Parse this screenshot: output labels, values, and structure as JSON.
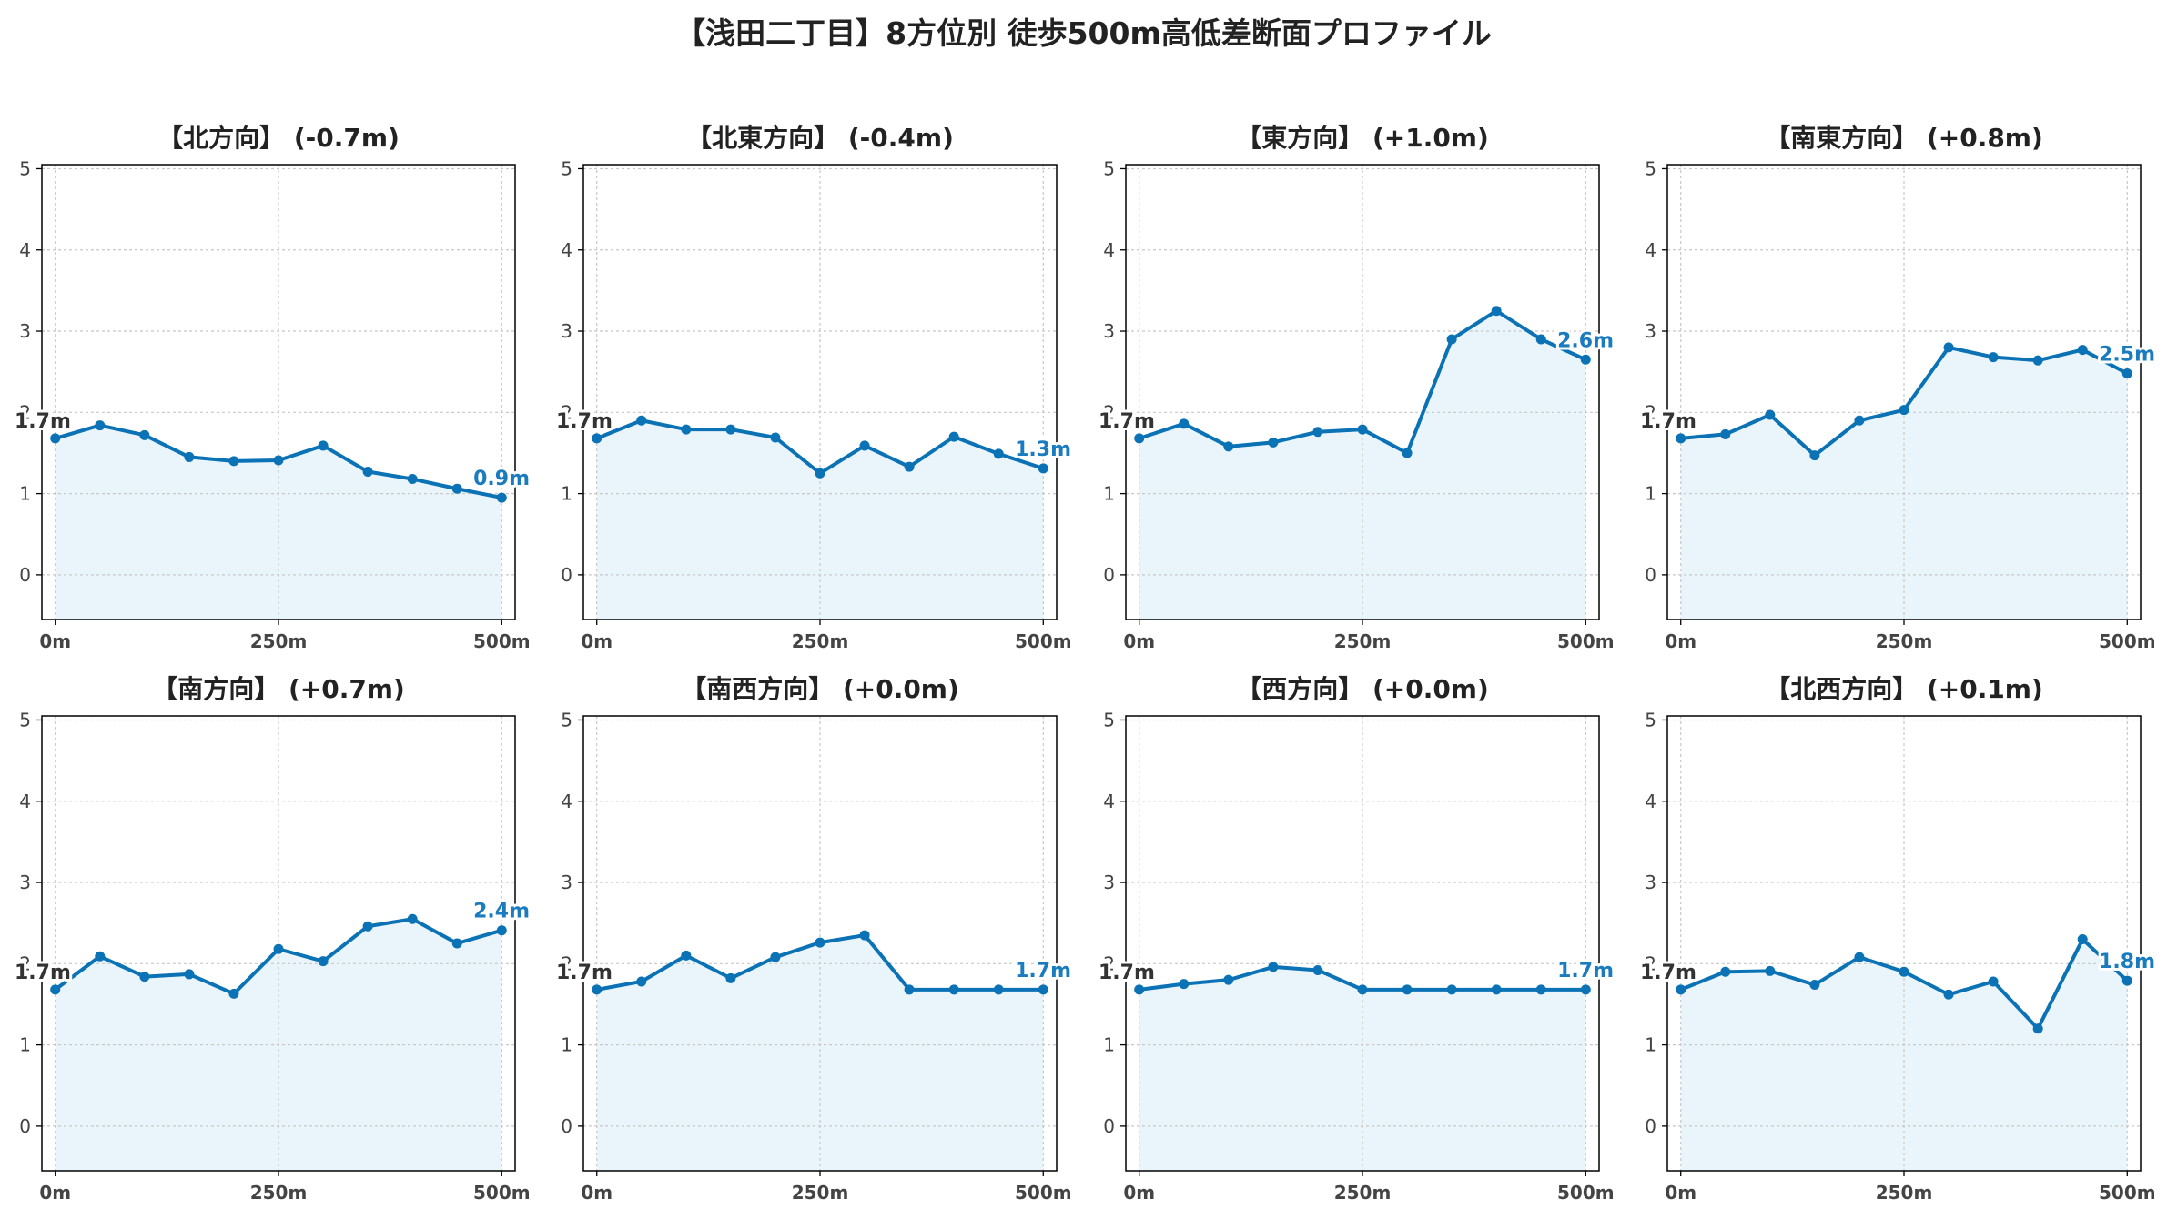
{
  "title": "【浅田二丁目】8方位別 徒歩500m高低差断面プロファイル",
  "colors": {
    "line": "#0a72b5",
    "fill": "#e9f5fb",
    "grid": "#c8c8c8",
    "axis": "#000000",
    "start_label": "#333333",
    "end_label": "#1a7bbf",
    "tick": "#444444"
  },
  "chart_data": [
    {
      "type": "area",
      "title": "【北方向】 (-0.7m)",
      "x": [
        0,
        50,
        100,
        150,
        200,
        250,
        300,
        350,
        400,
        450,
        500
      ],
      "values": [
        1.68,
        1.84,
        1.72,
        1.45,
        1.4,
        1.41,
        1.59,
        1.27,
        1.18,
        1.06,
        0.95
      ],
      "start_label": "1.7m",
      "end_label": "0.9m",
      "ylim": [
        -0.55,
        5.05
      ],
      "yticks": [
        0,
        1,
        2,
        3,
        4,
        5
      ],
      "xlim": [
        -15,
        515
      ],
      "xticks": [
        0,
        250,
        500
      ],
      "xticklabels": [
        "0m",
        "250m",
        "500m"
      ],
      "grid": true
    },
    {
      "type": "area",
      "title": "【北東方向】 (-0.4m)",
      "x": [
        0,
        50,
        100,
        150,
        200,
        250,
        300,
        350,
        400,
        450,
        500
      ],
      "values": [
        1.68,
        1.9,
        1.79,
        1.79,
        1.69,
        1.25,
        1.59,
        1.33,
        1.7,
        1.49,
        1.31
      ],
      "start_label": "1.7m",
      "end_label": "1.3m",
      "ylim": [
        -0.55,
        5.05
      ],
      "yticks": [
        0,
        1,
        2,
        3,
        4,
        5
      ],
      "xlim": [
        -15,
        515
      ],
      "xticks": [
        0,
        250,
        500
      ],
      "xticklabels": [
        "0m",
        "250m",
        "500m"
      ],
      "grid": true
    },
    {
      "type": "area",
      "title": "【東方向】 (+1.0m)",
      "x": [
        0,
        50,
        100,
        150,
        200,
        250,
        300,
        350,
        400,
        450,
        500
      ],
      "values": [
        1.68,
        1.86,
        1.58,
        1.63,
        1.76,
        1.79,
        1.5,
        2.9,
        3.25,
        2.9,
        2.65
      ],
      "start_label": "1.7m",
      "end_label": "2.6m",
      "ylim": [
        -0.55,
        5.05
      ],
      "yticks": [
        0,
        1,
        2,
        3,
        4,
        5
      ],
      "xlim": [
        -15,
        515
      ],
      "xticks": [
        0,
        250,
        500
      ],
      "xticklabels": [
        "0m",
        "250m",
        "500m"
      ],
      "grid": true
    },
    {
      "type": "area",
      "title": "【南東方向】 (+0.8m)",
      "x": [
        0,
        50,
        100,
        150,
        200,
        250,
        300,
        350,
        400,
        450,
        500
      ],
      "values": [
        1.68,
        1.73,
        1.97,
        1.47,
        1.9,
        2.03,
        2.8,
        2.68,
        2.64,
        2.77,
        2.48
      ],
      "start_label": "1.7m",
      "end_label": "2.5m",
      "ylim": [
        -0.55,
        5.05
      ],
      "yticks": [
        0,
        1,
        2,
        3,
        4,
        5
      ],
      "xlim": [
        -15,
        515
      ],
      "xticks": [
        0,
        250,
        500
      ],
      "xticklabels": [
        "0m",
        "250m",
        "500m"
      ],
      "grid": true
    },
    {
      "type": "area",
      "title": "【南方向】 (+0.7m)",
      "x": [
        0,
        50,
        100,
        150,
        200,
        250,
        300,
        350,
        400,
        450,
        500
      ],
      "values": [
        1.68,
        2.09,
        1.84,
        1.87,
        1.63,
        2.18,
        2.03,
        2.46,
        2.55,
        2.25,
        2.41
      ],
      "start_label": "1.7m",
      "end_label": "2.4m",
      "ylim": [
        -0.55,
        5.05
      ],
      "yticks": [
        0,
        1,
        2,
        3,
        4,
        5
      ],
      "xlim": [
        -15,
        515
      ],
      "xticks": [
        0,
        250,
        500
      ],
      "xticklabels": [
        "0m",
        "250m",
        "500m"
      ],
      "grid": true
    },
    {
      "type": "area",
      "title": "【南西方向】 (+0.0m)",
      "x": [
        0,
        50,
        100,
        150,
        200,
        250,
        300,
        350,
        400,
        450,
        500
      ],
      "values": [
        1.68,
        1.78,
        2.1,
        1.82,
        2.08,
        2.26,
        2.35,
        1.68,
        1.68,
        1.68,
        1.68
      ],
      "start_label": "1.7m",
      "end_label": "1.7m",
      "ylim": [
        -0.55,
        5.05
      ],
      "yticks": [
        0,
        1,
        2,
        3,
        4,
        5
      ],
      "xlim": [
        -15,
        515
      ],
      "xticks": [
        0,
        250,
        500
      ],
      "xticklabels": [
        "0m",
        "250m",
        "500m"
      ],
      "grid": true
    },
    {
      "type": "area",
      "title": "【西方向】 (+0.0m)",
      "x": [
        0,
        50,
        100,
        150,
        200,
        250,
        300,
        350,
        400,
        450,
        500
      ],
      "values": [
        1.68,
        1.75,
        1.8,
        1.96,
        1.92,
        1.68,
        1.68,
        1.68,
        1.68,
        1.68,
        1.68
      ],
      "start_label": "1.7m",
      "end_label": "1.7m",
      "ylim": [
        -0.55,
        5.05
      ],
      "yticks": [
        0,
        1,
        2,
        3,
        4,
        5
      ],
      "xlim": [
        -15,
        515
      ],
      "xticks": [
        0,
        250,
        500
      ],
      "xticklabels": [
        "0m",
        "250m",
        "500m"
      ],
      "grid": true
    },
    {
      "type": "area",
      "title": "【北西方向】 (+0.1m)",
      "x": [
        0,
        50,
        100,
        150,
        200,
        250,
        300,
        350,
        400,
        450,
        500
      ],
      "values": [
        1.68,
        1.9,
        1.91,
        1.74,
        2.08,
        1.9,
        1.62,
        1.78,
        1.2,
        2.3,
        1.79
      ],
      "start_label": "1.7m",
      "end_label": "1.8m",
      "ylim": [
        -0.55,
        5.05
      ],
      "yticks": [
        0,
        1,
        2,
        3,
        4,
        5
      ],
      "xlim": [
        -15,
        515
      ],
      "xticks": [
        0,
        250,
        500
      ],
      "xticklabels": [
        "0m",
        "250m",
        "500m"
      ],
      "grid": true
    }
  ]
}
